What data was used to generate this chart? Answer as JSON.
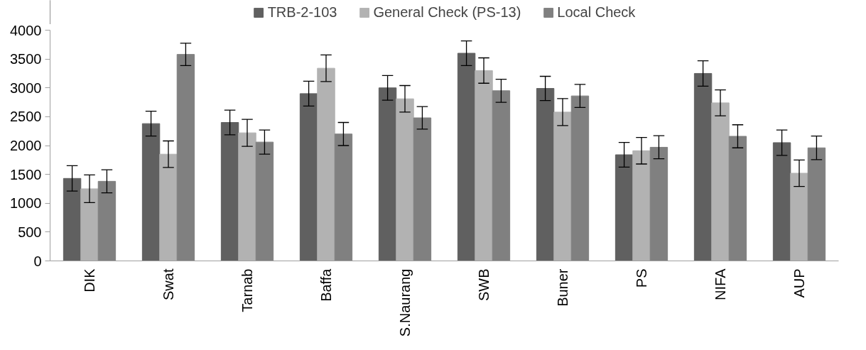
{
  "chart_data": {
    "type": "bar",
    "categories": [
      "DIK",
      "Swat",
      "Tarnab",
      "Baffa",
      "S.Naurang",
      "SWB",
      "Buner",
      "PS",
      "NIFA",
      "AUP"
    ],
    "series": [
      {
        "name": "TRB-2-103",
        "color": "#606060",
        "values": [
          1430,
          2380,
          2400,
          2900,
          3000,
          3600,
          2990,
          1840,
          3250,
          2050
        ],
        "errors": [
          220,
          215,
          215,
          215,
          215,
          215,
          210,
          215,
          220,
          220
        ]
      },
      {
        "name": "General Check (PS-13)",
        "color": "#b2b2b2",
        "values": [
          1250,
          1850,
          2220,
          3340,
          2810,
          3300,
          2580,
          1910,
          2740,
          1520
        ],
        "errors": [
          240,
          230,
          235,
          230,
          230,
          220,
          235,
          230,
          225,
          230
        ]
      },
      {
        "name": "Local Check",
        "color": "#808080",
        "values": [
          1380,
          3580,
          2060,
          2200,
          2480,
          2950,
          2860,
          1970,
          2160,
          1960
        ],
        "errors": [
          200,
          195,
          210,
          200,
          195,
          200,
          200,
          200,
          200,
          205
        ]
      }
    ],
    "ylim": [
      0,
      4000
    ],
    "yticks": [
      0,
      500,
      1000,
      1500,
      2000,
      2500,
      3000,
      3500,
      4000
    ],
    "grid": false,
    "legend": "top"
  }
}
